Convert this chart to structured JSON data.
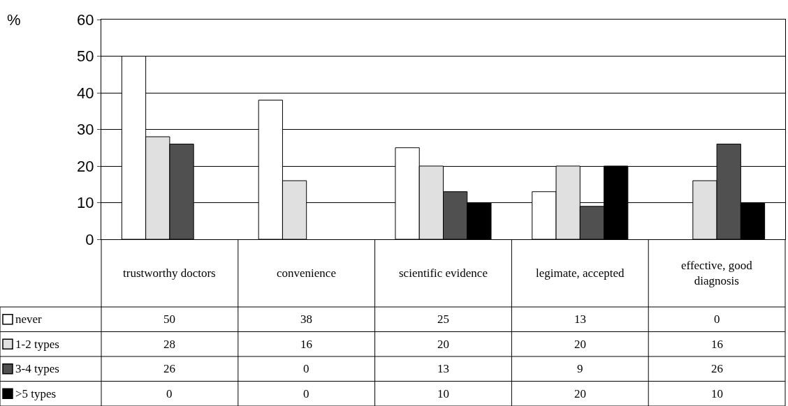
{
  "chart_data": {
    "type": "bar",
    "ylabel": "%",
    "categories": [
      "trustworthy doctors",
      "convenience",
      "scientific evidence",
      "legimate, accepted",
      "effective, good diagnosis"
    ],
    "series": [
      {
        "name": "never",
        "color": "#ffffff",
        "values": [
          50,
          38,
          25,
          13,
          0
        ]
      },
      {
        "name": "1-2 types",
        "color": "#e0e0e0",
        "values": [
          28,
          16,
          20,
          20,
          16
        ]
      },
      {
        "name": "3-4 types",
        "color": "#505050",
        "values": [
          26,
          0,
          13,
          9,
          26
        ]
      },
      {
        "name": ">5 types",
        "color": "#000000",
        "values": [
          0,
          0,
          10,
          20,
          10
        ]
      }
    ],
    "ylim": [
      0,
      60
    ],
    "yticks": [
      0,
      10,
      20,
      30,
      40,
      50,
      60
    ],
    "grid": "y",
    "legend": "bottom left",
    "data_labels": true
  }
}
